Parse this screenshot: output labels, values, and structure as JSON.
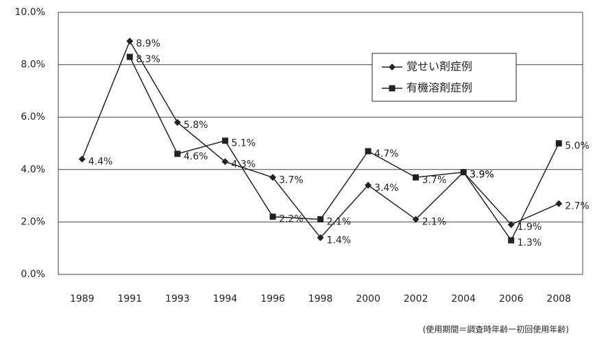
{
  "chart_data": {
    "type": "line",
    "categories": [
      "1989",
      "1991",
      "1993",
      "1994",
      "1996",
      "1998",
      "2000",
      "2002",
      "2004",
      "2006",
      "2008"
    ],
    "series": [
      {
        "name": "覚せい剤症例",
        "color": "#222222",
        "marker": "diamond",
        "values": [
          4.4,
          8.9,
          5.8,
          4.3,
          3.7,
          1.4,
          3.4,
          2.1,
          3.9,
          1.9,
          2.7
        ],
        "value_labels": [
          "4.4%",
          "8.9%",
          "5.8%",
          "4.3%",
          "3.7%",
          "1.4%",
          "3.4%",
          "2.1%",
          "3.9%",
          "1.9%",
          "2.7%"
        ]
      },
      {
        "name": "有機溶剤症例",
        "color": "#222222",
        "marker": "square",
        "values": [
          null,
          8.3,
          4.6,
          5.1,
          2.2,
          2.1,
          4.7,
          3.7,
          3.9,
          1.3,
          5.0
        ],
        "value_labels": [
          null,
          "8.3%",
          "4.6%",
          "5.1%",
          "2.2%",
          "2.1%",
          "4.7%",
          "3.7%",
          "3.9%",
          "1.3%",
          "5.0%"
        ]
      }
    ],
    "ylim": [
      0,
      10
    ],
    "yticks": [
      {
        "value": 0,
        "label": "0.0%"
      },
      {
        "value": 2,
        "label": "2.0%"
      },
      {
        "value": 4,
        "label": "4.0%"
      },
      {
        "value": 6,
        "label": "6.0%"
      },
      {
        "value": 8,
        "label": "8.0%"
      },
      {
        "value": 10,
        "label": "10.0%"
      }
    ],
    "grid": true,
    "legend": "upper right",
    "note": "(使用期間＝調査時年齢ー初回使用年齢)"
  }
}
